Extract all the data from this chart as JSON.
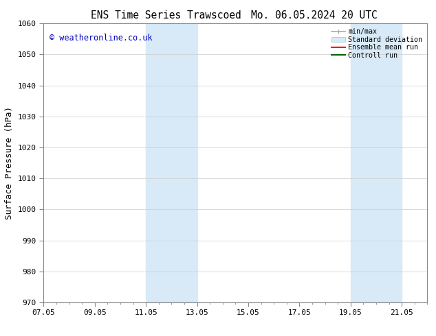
{
  "title_left": "ENS Time Series Trawscoed",
  "title_right": "Mo. 06.05.2024 20 UTC",
  "ylabel": "Surface Pressure (hPa)",
  "ylim": [
    970,
    1060
  ],
  "yticks": [
    970,
    980,
    990,
    1000,
    1010,
    1020,
    1030,
    1040,
    1050,
    1060
  ],
  "xtick_labels": [
    "07.05",
    "09.05",
    "11.05",
    "13.05",
    "15.05",
    "17.05",
    "19.05",
    "21.05"
  ],
  "xtick_positions": [
    0,
    2,
    4,
    6,
    8,
    10,
    12,
    14
  ],
  "xlim": [
    0,
    15
  ],
  "shaded_regions": [
    {
      "start": 4,
      "end": 6
    },
    {
      "start": 12,
      "end": 14
    }
  ],
  "shaded_color": "#d8eaf7",
  "watermark_text": "© weatheronline.co.uk",
  "watermark_color": "#0000bb",
  "legend_items": [
    {
      "label": "min/max",
      "color": "#aaaaaa",
      "lw": 1.2
    },
    {
      "label": "Standard deviation",
      "color": "#d8eaf7",
      "lw": 8
    },
    {
      "label": "Ensemble mean run",
      "color": "#ff0000",
      "lw": 1.5
    },
    {
      "label": "Controll run",
      "color": "#006600",
      "lw": 1.5
    }
  ],
  "bg_color": "#ffffff",
  "grid_color": "#cccccc",
  "spine_color": "#888888",
  "title_fontsize": 10.5,
  "axis_fontsize": 9,
  "tick_fontsize": 8,
  "watermark_fontsize": 8.5
}
